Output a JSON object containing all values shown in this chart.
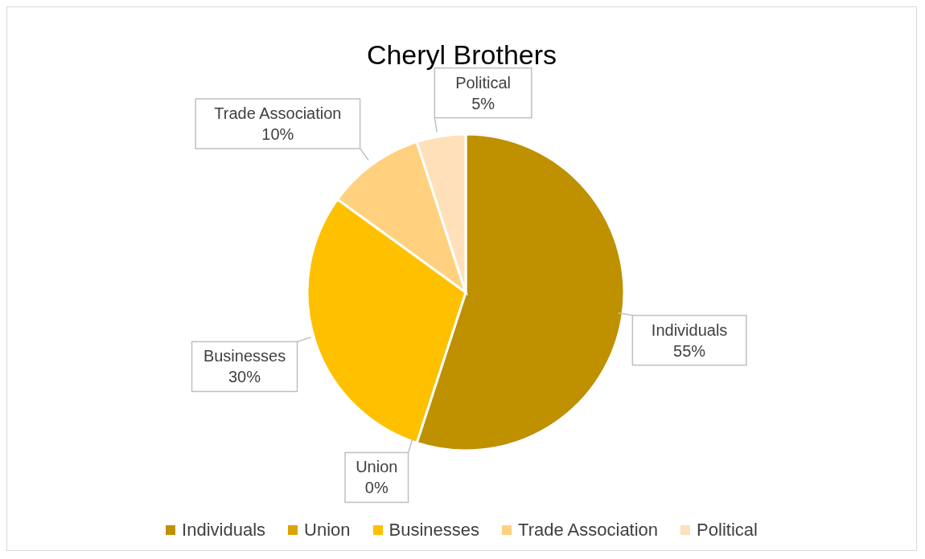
{
  "chart_data": {
    "type": "pie",
    "title": "Cheryl Brothers",
    "categories": [
      "Individuals",
      "Union",
      "Businesses",
      "Trade Association",
      "Political"
    ],
    "values": [
      55,
      0,
      30,
      10,
      5
    ],
    "value_labels": [
      "55%",
      "0%",
      "30%",
      "10%",
      "5%"
    ],
    "colors": [
      "#bf9000",
      "#dba400",
      "#ffc000",
      "#ffd17f",
      "#ffe0b8"
    ],
    "data_labels": true,
    "legend": "bottom"
  }
}
